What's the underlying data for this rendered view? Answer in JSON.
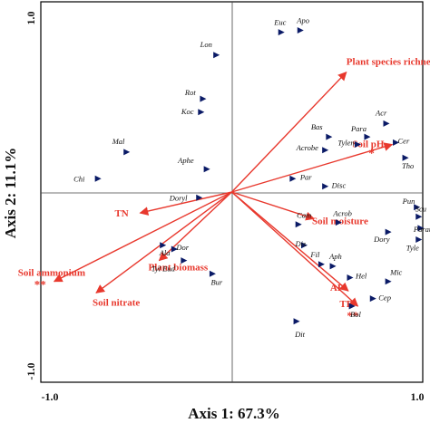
{
  "chart_data": {
    "type": "scatter",
    "xlabel": "Axis 1: 67.3%",
    "ylabel": "Axis 2: 11.1%",
    "xlim": [
      -1.0,
      1.0
    ],
    "ylim": [
      -1.0,
      1.0
    ],
    "x_ticks": [
      "-1.0",
      "1.0"
    ],
    "y_ticks": [
      "1.0",
      "-1.0"
    ],
    "grid": false,
    "colors": {
      "arrow": "#e8382d",
      "point": "#0a1a66",
      "frame": "#000000"
    },
    "species": [
      {
        "name": "Apo",
        "x": 0.36,
        "y": 0.85
      },
      {
        "name": "Euc",
        "x": 0.26,
        "y": 0.84
      },
      {
        "name": "Lon",
        "x": -0.08,
        "y": 0.72
      },
      {
        "name": "Rot",
        "x": -0.15,
        "y": 0.49
      },
      {
        "name": "Koc",
        "x": -0.16,
        "y": 0.42
      },
      {
        "name": "Acr",
        "x": 0.81,
        "y": 0.36
      },
      {
        "name": "Bas",
        "x": 0.51,
        "y": 0.29
      },
      {
        "name": "Para",
        "x": 0.71,
        "y": 0.29
      },
      {
        "name": "Tylen",
        "x": 0.66,
        "y": 0.25
      },
      {
        "name": "Cer",
        "x": 0.86,
        "y": 0.26
      },
      {
        "name": "Acrobe",
        "x": 0.49,
        "y": 0.22
      },
      {
        "name": "Tho",
        "x": 0.91,
        "y": 0.18
      },
      {
        "name": "Mal",
        "x": -0.55,
        "y": 0.21
      },
      {
        "name": "Aphe",
        "x": -0.13,
        "y": 0.12
      },
      {
        "name": "Par",
        "x": 0.32,
        "y": 0.07
      },
      {
        "name": "Disc",
        "x": 0.49,
        "y": 0.03
      },
      {
        "name": "Chi",
        "x": -0.7,
        "y": 0.07
      },
      {
        "name": "Doryl",
        "x": -0.17,
        "y": -0.03
      },
      {
        "name": "Pun",
        "x": 0.97,
        "y": -0.08
      },
      {
        "name": "Scu",
        "x": 0.98,
        "y": -0.13
      },
      {
        "name": "Parat",
        "x": 0.99,
        "y": -0.19
      },
      {
        "name": "Tyle",
        "x": 0.98,
        "y": -0.25
      },
      {
        "name": "Dory",
        "x": 0.82,
        "y": -0.21
      },
      {
        "name": "Cam",
        "x": 0.35,
        "y": -0.17
      },
      {
        "name": "Acrob",
        "x": 0.56,
        "y": -0.16
      },
      {
        "name": "Ala",
        "x": -0.36,
        "y": -0.28
      },
      {
        "name": "Dor",
        "x": -0.3,
        "y": -0.3
      },
      {
        "name": "Dis",
        "x": 0.38,
        "y": -0.28
      },
      {
        "name": "Tyl Eud",
        "x": -0.25,
        "y": -0.36
      },
      {
        "name": "Bur",
        "x": -0.1,
        "y": -0.43
      },
      {
        "name": "Fil",
        "x": 0.47,
        "y": -0.38
      },
      {
        "name": "Aph",
        "x": 0.53,
        "y": -0.39
      },
      {
        "name": "Hel",
        "x": 0.62,
        "y": -0.45
      },
      {
        "name": "Mic",
        "x": 0.82,
        "y": -0.47
      },
      {
        "name": "Cep",
        "x": 0.74,
        "y": -0.56
      },
      {
        "name": "Bol",
        "x": 0.63,
        "y": -0.6
      },
      {
        "name": "Dit",
        "x": 0.34,
        "y": -0.68
      }
    ],
    "environment": [
      {
        "name": "Plant species richness",
        "x": 0.6,
        "y": 0.63
      },
      {
        "name": "Soil pH",
        "x": 0.84,
        "y": 0.25,
        "significance": "*"
      },
      {
        "name": "TN",
        "x": -0.48,
        "y": -0.11
      },
      {
        "name": "Soil moisture",
        "x": 0.43,
        "y": -0.14
      },
      {
        "name": "Soil ammonium",
        "x": -0.93,
        "y": -0.47,
        "significance": "**"
      },
      {
        "name": "Soil nitrate",
        "x": -0.71,
        "y": -0.53
      },
      {
        "name": "Plant biomass",
        "x": -0.38,
        "y": -0.36
      },
      {
        "name": "AP",
        "x": 0.61,
        "y": -0.52
      },
      {
        "name": "TP",
        "x": 0.66,
        "y": -0.6,
        "significance": "**"
      }
    ]
  }
}
